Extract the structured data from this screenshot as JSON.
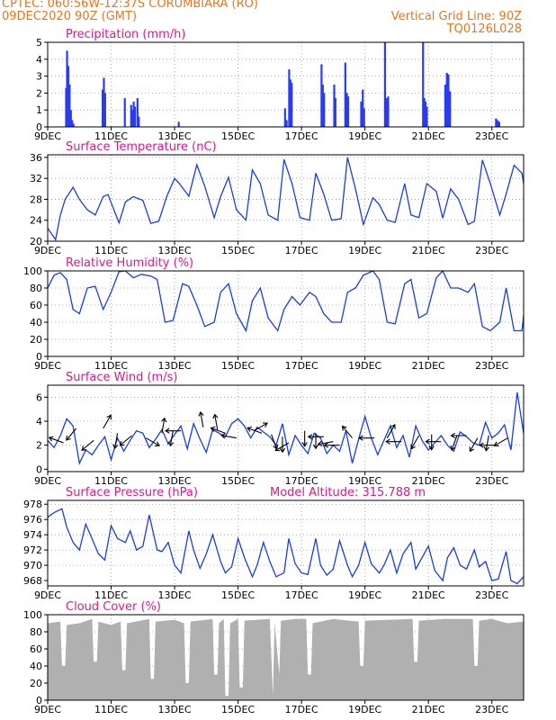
{
  "header": {
    "line1_left": "CPTEC:   060:56W-12:37S   CORUMBIARA (RO)",
    "line2_left": "09DEC2020 90Z (GMT)",
    "line1_right": "Vertical Grid Line: 90Z",
    "line2_right": "TQ0126L028"
  },
  "colors": {
    "header": "#e8741c",
    "title": "#e0168c",
    "line": "#1a3de0",
    "bar": "#2a3bf0",
    "cloud": "#b0b0b0",
    "grid": "#999999"
  },
  "x_axis": {
    "ticks": [
      "9DEC",
      "11DEC",
      "13DEC",
      "15DEC",
      "17DEC",
      "19DEC",
      "21DEC",
      "23DEC"
    ],
    "tick_positions": [
      0,
      2,
      4,
      6,
      8,
      10,
      12,
      14
    ],
    "range": [
      0,
      15.0
    ]
  },
  "extra_label": "Model Altitude: 315.788 m",
  "chart_data": [
    {
      "type": "bar",
      "title": "Precipitation (mm/h)",
      "ylim": [
        0,
        5
      ],
      "yticks": [
        "0",
        "1",
        "2",
        "3",
        "4",
        "5"
      ],
      "bars": [
        [
          0.55,
          2.3
        ],
        [
          0.58,
          4.5
        ],
        [
          0.62,
          3.6
        ],
        [
          0.66,
          2.5
        ],
        [
          0.7,
          1.0
        ],
        [
          0.74,
          0.4
        ],
        [
          0.78,
          0.2
        ],
        [
          1.7,
          2.2
        ],
        [
          1.74,
          2.9
        ],
        [
          1.78,
          2.0
        ],
        [
          2.4,
          1.7
        ],
        [
          2.6,
          1.3
        ],
        [
          2.64,
          1.0
        ],
        [
          2.68,
          1.5
        ],
        [
          2.72,
          1.2
        ],
        [
          2.8,
          1.7
        ],
        [
          2.84,
          0.6
        ],
        [
          4.1,
          0.3
        ],
        [
          7.45,
          1.1
        ],
        [
          7.5,
          0.4
        ],
        [
          7.58,
          3.4
        ],
        [
          7.62,
          2.8
        ],
        [
          7.66,
          2.6
        ],
        [
          8.6,
          3.7
        ],
        [
          8.64,
          2.5
        ],
        [
          8.68,
          2.0
        ],
        [
          9.0,
          2.5
        ],
        [
          9.04,
          1.7
        ],
        [
          9.35,
          3.8
        ],
        [
          9.4,
          2.0
        ],
        [
          9.44,
          1.8
        ],
        [
          9.85,
          1.5
        ],
        [
          9.9,
          2.2
        ],
        [
          9.94,
          1.1
        ],
        [
          10.6,
          5.0
        ],
        [
          10.62,
          1.4
        ],
        [
          10.66,
          1.7
        ],
        [
          10.7,
          1.8
        ],
        [
          11.8,
          5.0
        ],
        [
          11.84,
          1.7
        ],
        [
          11.88,
          1.5
        ],
        [
          11.92,
          1.2
        ],
        [
          12.5,
          2.5
        ],
        [
          12.55,
          3.2
        ],
        [
          12.6,
          3.1
        ],
        [
          12.65,
          2.1
        ],
        [
          14.1,
          0.5
        ],
        [
          14.15,
          0.4
        ],
        [
          14.2,
          0.3
        ]
      ]
    },
    {
      "type": "line",
      "title": "Surface Temperature (nC)",
      "ylim": [
        20,
        36.5
      ],
      "yticks": [
        "20",
        "24",
        "28",
        "32",
        "36"
      ],
      "ytick_values": [
        20,
        24,
        28,
        32,
        36
      ],
      "x": [
        0,
        0.25,
        0.4,
        0.55,
        0.8,
        1.0,
        1.25,
        1.5,
        1.75,
        1.9,
        2.25,
        2.45,
        2.7,
        3.0,
        3.25,
        3.5,
        3.75,
        4.0,
        4.15,
        4.45,
        4.7,
        4.95,
        5.25,
        5.45,
        5.7,
        5.95,
        6.25,
        6.45,
        6.7,
        6.95,
        7.25,
        7.45,
        7.7,
        7.95,
        8.25,
        8.45,
        8.7,
        8.95,
        9.25,
        9.45,
        9.7,
        9.95,
        10.25,
        10.45,
        10.7,
        10.95,
        11.25,
        11.45,
        11.7,
        11.95,
        12.25,
        12.45,
        12.7,
        12.95,
        13.25,
        13.45,
        13.7,
        13.95,
        14.25,
        14.45,
        14.7,
        14.95,
        15.0
      ],
      "values": [
        22.5,
        20.3,
        25.0,
        28.0,
        30.3,
        28.0,
        26.0,
        25.0,
        28.5,
        28.9,
        23.5,
        27.5,
        28.5,
        27.8,
        23.4,
        23.8,
        28.5,
        32.0,
        31.0,
        28.6,
        34.6,
        30.5,
        24.5,
        28.5,
        32.2,
        26.0,
        24.0,
        33.6,
        31.0,
        25.0,
        24.0,
        35.6,
        31.0,
        24.5,
        24.0,
        33.0,
        29.0,
        24.0,
        24.3,
        36.0,
        30.0,
        23.2,
        28.3,
        27.0,
        24.0,
        23.6,
        31.0,
        25.0,
        24.5,
        31.0,
        29.5,
        24.4,
        30.0,
        28.0,
        23.2,
        23.8,
        35.5,
        31.0,
        25.0,
        29.0,
        34.5,
        33.0,
        31.0
      ]
    },
    {
      "type": "line",
      "title": "Relative Humidity (%)",
      "ylim": [
        0,
        100
      ],
      "yticks": [
        "0",
        "20",
        "40",
        "60",
        "80",
        "100"
      ],
      "ytick_values": [
        0,
        20,
        40,
        60,
        80,
        100
      ],
      "x": [
        0,
        0.2,
        0.4,
        0.6,
        0.8,
        1.0,
        1.25,
        1.5,
        1.75,
        2.0,
        2.25,
        2.45,
        2.7,
        2.95,
        3.25,
        3.45,
        3.7,
        3.95,
        4.25,
        4.45,
        4.7,
        4.95,
        5.25,
        5.45,
        5.7,
        5.95,
        6.25,
        6.45,
        6.7,
        6.95,
        7.25,
        7.45,
        7.7,
        7.95,
        8.25,
        8.45,
        8.7,
        8.95,
        9.25,
        9.45,
        9.7,
        9.95,
        10.25,
        10.45,
        10.7,
        10.95,
        11.25,
        11.45,
        11.7,
        11.95,
        12.25,
        12.45,
        12.7,
        12.95,
        13.25,
        13.45,
        13.7,
        13.95,
        14.25,
        14.45,
        14.7,
        14.95,
        15.0
      ],
      "values": [
        80,
        95,
        98,
        90,
        55,
        50,
        80,
        82,
        55,
        75,
        99,
        100,
        92,
        96,
        94,
        90,
        40,
        42,
        85,
        82,
        60,
        35,
        40,
        75,
        85,
        50,
        30,
        65,
        80,
        45,
        30,
        55,
        70,
        60,
        75,
        70,
        50,
        40,
        40,
        75,
        80,
        95,
        100,
        90,
        40,
        38,
        85,
        90,
        45,
        50,
        92,
        100,
        80,
        80,
        75,
        85,
        35,
        30,
        40,
        80,
        30,
        30,
        48
      ]
    },
    {
      "type": "line",
      "title": "Surface Wind (m/s)",
      "ylim": [
        -0.2,
        7
      ],
      "yticks": [
        "0",
        "2",
        "4",
        "6"
      ],
      "ytick_values": [
        0,
        2,
        4,
        6
      ],
      "x": [
        0,
        0.2,
        0.4,
        0.6,
        0.8,
        1.0,
        1.2,
        1.4,
        1.6,
        1.8,
        2.0,
        2.2,
        2.4,
        2.6,
        2.8,
        3.0,
        3.2,
        3.4,
        3.6,
        3.8,
        4.0,
        4.2,
        4.4,
        4.6,
        4.8,
        5.0,
        5.2,
        5.4,
        5.6,
        5.8,
        6.0,
        6.2,
        6.4,
        6.6,
        6.8,
        7.0,
        7.2,
        7.4,
        7.6,
        7.8,
        8.0,
        8.2,
        8.4,
        8.6,
        8.8,
        9.0,
        9.2,
        9.4,
        9.6,
        9.8,
        10.0,
        10.2,
        10.4,
        10.6,
        10.8,
        11.0,
        11.2,
        11.4,
        11.6,
        11.8,
        12.0,
        12.2,
        12.4,
        12.6,
        12.8,
        13.0,
        13.2,
        13.4,
        13.6,
        13.8,
        14.0,
        14.2,
        14.4,
        14.6,
        14.8,
        15.0
      ],
      "values": [
        2.4,
        1.8,
        2.8,
        4.2,
        3.6,
        0.5,
        1.6,
        1.2,
        2.0,
        2.7,
        0.8,
        2.6,
        1.5,
        2.4,
        3.2,
        3.0,
        1.8,
        2.5,
        3.3,
        2.1,
        2.9,
        3.6,
        1.7,
        3.8,
        2.5,
        1.4,
        3.3,
        3.0,
        2.7,
        3.8,
        4.2,
        3.6,
        2.6,
        3.5,
        3.1,
        2.7,
        2.0,
        3.8,
        1.2,
        2.8,
        2.0,
        1.3,
        3.0,
        2.6,
        1.3,
        2.0,
        1.5,
        3.2,
        0.5,
        2.5,
        4.4,
        2.6,
        1.2,
        2.4,
        3.6,
        1.8,
        2.8,
        1.0,
        3.6,
        2.4,
        1.6,
        2.2,
        2.8,
        2.0,
        1.5,
        3.1,
        2.7,
        2.2,
        2.0,
        3.9,
        2.6,
        3.0,
        3.7,
        1.6,
        6.4,
        3.0
      ],
      "arrows": [
        [
          0.5,
          2.2,
          200
        ],
        [
          0.9,
          3.4,
          130
        ],
        [
          1.45,
          2.4,
          140
        ],
        [
          1.75,
          3.4,
          300
        ],
        [
          2.2,
          3.0,
          100
        ],
        [
          2.65,
          2.8,
          140
        ],
        [
          3.1,
          2.6,
          30
        ],
        [
          3.6,
          3.0,
          280
        ],
        [
          3.95,
          3.2,
          100
        ],
        [
          4.2,
          3.2,
          180
        ],
        [
          4.9,
          3.5,
          260
        ],
        [
          5.35,
          3.3,
          260
        ],
        [
          5.6,
          3.0,
          200
        ],
        [
          5.95,
          2.6,
          190
        ],
        [
          6.5,
          3.2,
          330
        ],
        [
          6.75,
          3.0,
          200
        ],
        [
          7.05,
          2.9,
          70
        ],
        [
          7.4,
          2.7,
          90
        ],
        [
          7.6,
          2.2,
          150
        ],
        [
          8.1,
          3.2,
          90
        ],
        [
          8.45,
          3.0,
          90
        ],
        [
          8.7,
          2.7,
          180
        ],
        [
          9.0,
          2.3,
          170
        ],
        [
          9.2,
          2.0,
          180
        ],
        [
          9.6,
          2.6,
          230
        ],
        [
          10.3,
          2.6,
          180
        ],
        [
          10.7,
          2.6,
          300
        ],
        [
          11.15,
          2.3,
          180
        ],
        [
          11.7,
          2.8,
          120
        ],
        [
          12.1,
          2.9,
          90
        ],
        [
          12.4,
          2.3,
          180
        ],
        [
          12.9,
          2.8,
          110
        ],
        [
          13.2,
          2.8,
          180
        ],
        [
          13.55,
          2.6,
          120
        ],
        [
          13.9,
          2.8,
          100
        ],
        [
          14.1,
          2.0,
          180
        ],
        [
          14.5,
          2.6,
          150
        ]
      ]
    },
    {
      "type": "line",
      "title": "Surface Pressure (hPa)",
      "ylim": [
        967.3,
        978.5
      ],
      "yticks": [
        "968",
        "970",
        "972",
        "974",
        "976",
        "978"
      ],
      "ytick_values": [
        968,
        970,
        972,
        974,
        976,
        978
      ],
      "x": [
        0,
        0.2,
        0.45,
        0.6,
        0.8,
        1.0,
        1.2,
        1.45,
        1.6,
        1.8,
        2.0,
        2.2,
        2.45,
        2.6,
        2.8,
        3.0,
        3.2,
        3.45,
        3.6,
        3.8,
        4.0,
        4.2,
        4.45,
        4.6,
        4.8,
        5.0,
        5.2,
        5.45,
        5.6,
        5.8,
        6.0,
        6.2,
        6.45,
        6.6,
        6.8,
        7.0,
        7.2,
        7.45,
        7.6,
        7.8,
        8.0,
        8.2,
        8.45,
        8.6,
        8.8,
        9.0,
        9.2,
        9.45,
        9.6,
        9.8,
        10.0,
        10.2,
        10.45,
        10.6,
        10.8,
        11.0,
        11.2,
        11.45,
        11.6,
        11.8,
        12.0,
        12.2,
        12.45,
        12.6,
        12.8,
        13.0,
        13.2,
        13.45,
        13.6,
        13.8,
        14.0,
        14.2,
        14.45,
        14.6,
        14.8,
        15.0
      ],
      "values": [
        976.3,
        976.9,
        977.4,
        975.0,
        973.0,
        972.0,
        975.4,
        973.0,
        971.5,
        970.7,
        975.2,
        973.5,
        973.0,
        974.5,
        972.0,
        972.5,
        976.6,
        972.0,
        971.8,
        973.0,
        970.0,
        969.0,
        974.5,
        972.0,
        969.6,
        971.5,
        974.0,
        970.5,
        969.0,
        969.8,
        973.5,
        971.0,
        968.5,
        970.0,
        973.0,
        970.5,
        968.5,
        969.0,
        973.5,
        970.2,
        969.0,
        968.8,
        973.5,
        970.0,
        968.7,
        969.5,
        973.2,
        970.0,
        968.5,
        970.0,
        973.0,
        970.2,
        969.0,
        970.0,
        972.0,
        969.0,
        971.5,
        973.0,
        969.5,
        971.0,
        972.5,
        969.3,
        968.0,
        971.0,
        972.3,
        970.0,
        969.5,
        972.0,
        969.8,
        970.5,
        968.0,
        968.2,
        971.8,
        968.0,
        967.6,
        968.5
      ]
    },
    {
      "type": "area",
      "title": "Cloud Cover (%)",
      "ylim": [
        0,
        100
      ],
      "yticks": [
        "0",
        "20",
        "40",
        "60",
        "80",
        "100"
      ],
      "ytick_values": [
        0,
        20,
        40,
        60,
        80,
        100
      ],
      "x": [
        0,
        0.4,
        0.45,
        0.55,
        0.6,
        1.0,
        1.4,
        1.45,
        1.55,
        1.6,
        2.0,
        2.3,
        2.35,
        2.45,
        2.5,
        3.2,
        3.25,
        3.35,
        3.4,
        4.0,
        4.3,
        4.35,
        4.45,
        4.5,
        5.2,
        5.25,
        5.35,
        5.4,
        5.55,
        5.6,
        5.7,
        5.75,
        6.0,
        6.05,
        6.15,
        6.2,
        7.0,
        7.1,
        7.15,
        7.3,
        7.35,
        7.8,
        8.15,
        8.2,
        8.3,
        8.35,
        9.0,
        9.8,
        9.85,
        9.95,
        10.0,
        11.5,
        11.55,
        11.65,
        11.7,
        12.5,
        13.4,
        13.45,
        13.55,
        13.6,
        14.0,
        14.5,
        15.0
      ],
      "values": [
        90,
        92,
        40,
        40,
        88,
        90,
        95,
        45,
        45,
        92,
        88,
        92,
        35,
        35,
        90,
        95,
        25,
        25,
        92,
        94,
        90,
        20,
        20,
        92,
        95,
        30,
        30,
        90,
        95,
        5,
        5,
        90,
        95,
        15,
        15,
        93,
        95,
        5,
        92,
        30,
        93,
        95,
        95,
        30,
        30,
        90,
        95,
        92,
        40,
        40,
        93,
        95,
        45,
        45,
        93,
        95,
        95,
        40,
        40,
        93,
        95,
        90,
        92
      ]
    }
  ]
}
